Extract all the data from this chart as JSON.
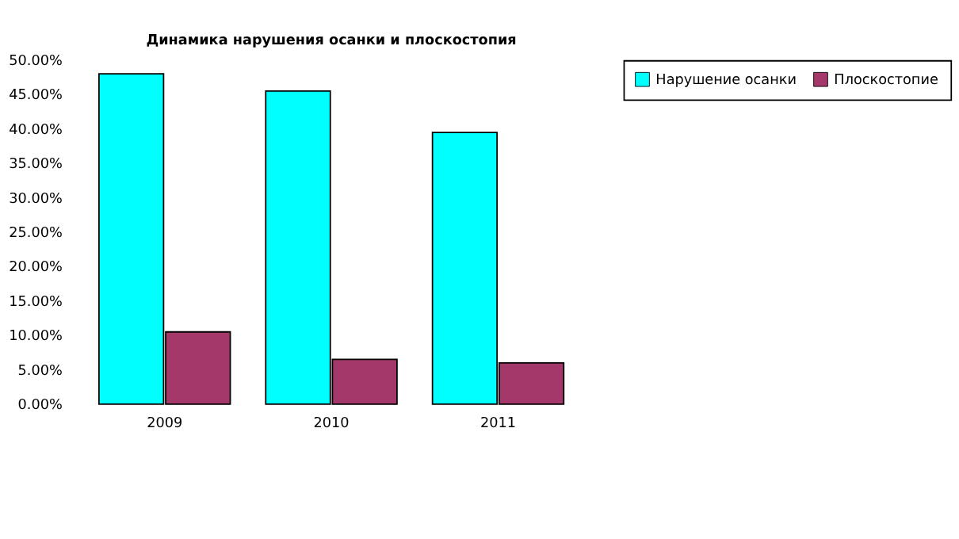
{
  "chart_data": {
    "type": "bar",
    "title": "Динамика нарушения осанки и плоскостопия",
    "categories": [
      "2009",
      "2010",
      "2011"
    ],
    "series": [
      {
        "name": "Нарушение осанки",
        "color": "#00ffff",
        "values": [
          48,
          45.5,
          39.5
        ]
      },
      {
        "name": "Плоскостопие",
        "color": "#a5386b",
        "values": [
          10.5,
          6.5,
          6
        ]
      }
    ],
    "ylim": [
      0,
      50
    ],
    "yticks": [
      {
        "value": 0,
        "label": "0.00%"
      },
      {
        "value": 5,
        "label": "5.00%"
      },
      {
        "value": 10,
        "label": "10.00%"
      },
      {
        "value": 15,
        "label": "15.00%"
      },
      {
        "value": 20,
        "label": "20.00%"
      },
      {
        "value": 25,
        "label": "25.00%"
      },
      {
        "value": 30,
        "label": "30.00%"
      },
      {
        "value": 35,
        "label": "35.00%"
      },
      {
        "value": 40,
        "label": "40.00%"
      },
      {
        "value": 45,
        "label": "45.00%"
      },
      {
        "value": 50,
        "label": "50.00%"
      }
    ],
    "grid": false,
    "legend": "right"
  }
}
